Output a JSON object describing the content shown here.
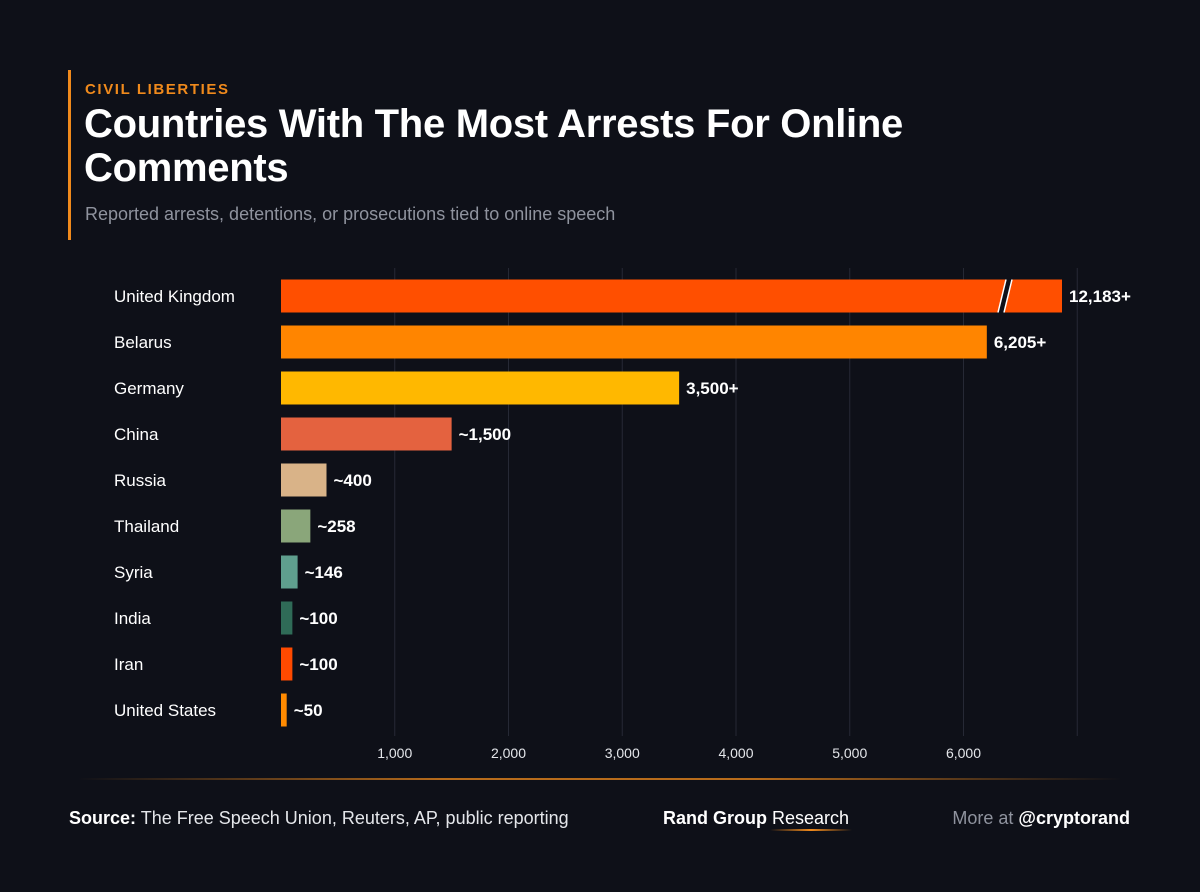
{
  "header": {
    "kicker": "CIVIL LIBERTIES",
    "title": "Countries With The Most Arrests For Online Comments",
    "subtitle": "Reported arrests, detentions, or prosecutions tied to online speech"
  },
  "chart_data": {
    "type": "bar",
    "orientation": "horizontal",
    "title": "Countries With The Most Arrests For Online Comments",
    "subtitle": "Reported arrests, detentions, or prosecutions tied to online speech",
    "categories": [
      "United Kingdom",
      "Belarus",
      "Germany",
      "China",
      "Russia",
      "Thailand",
      "Syria",
      "India",
      "Iran",
      "United States"
    ],
    "values": [
      12183,
      6205,
      3500,
      1500,
      400,
      258,
      146,
      100,
      100,
      50
    ],
    "data_labels": [
      "12,183+",
      "6,205+",
      "3,500+",
      "~1,500",
      "~400",
      "~258",
      "~146",
      "~100",
      "~100",
      "~50"
    ],
    "bar_colors": [
      "#ff4f00",
      "#ff8500",
      "#ffb800",
      "#e4623f",
      "#d9b388",
      "#8aa67a",
      "#5f9f8e",
      "#2f6b57",
      "#ff4a00",
      "#ff8a00"
    ],
    "broken_axis_categories": [
      "United Kingdom"
    ],
    "xticks": [
      1000,
      2000,
      3000,
      4000,
      5000,
      6000
    ],
    "xtick_labels": [
      "1,000",
      "2,000",
      "3,000",
      "4,000",
      "5,000",
      "6,000"
    ],
    "xlim": [
      0,
      7000
    ],
    "grid": true,
    "legend": "none"
  },
  "footer": {
    "source_label": "Source:",
    "source_text": "The Free Speech Union, Reuters, AP, public reporting",
    "brand_strong": "Rand Group",
    "brand_rest": "Research",
    "more_label": "More at",
    "handle": "@cryptorand"
  }
}
